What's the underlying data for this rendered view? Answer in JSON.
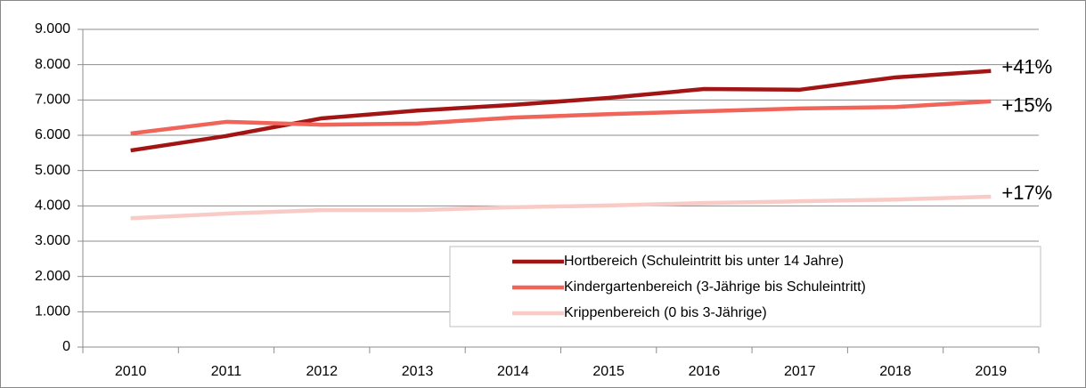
{
  "chart_data": {
    "type": "line",
    "categories": [
      "2010",
      "2011",
      "2012",
      "2013",
      "2014",
      "2015",
      "2016",
      "2017",
      "2018",
      "2019"
    ],
    "series": [
      {
        "name": "Hortbereich (Schuleintritt bis unter 14 Jahre)",
        "color": "#a31515",
        "values": [
          5570,
          5980,
          6480,
          6700,
          6860,
          7060,
          7310,
          7290,
          7640,
          7820
        ],
        "annotation": "+41%"
      },
      {
        "name": "Kindergartenbereich (3-Jährige bis Schuleintritt)",
        "color": "#f0645a",
        "values": [
          6050,
          6380,
          6300,
          6330,
          6500,
          6600,
          6680,
          6760,
          6800,
          6960
        ],
        "annotation": "+15%"
      },
      {
        "name": "Krippenbereich (0 bis 3-Jährige)",
        "color": "#f9cbc6",
        "values": [
          3650,
          3780,
          3880,
          3880,
          3960,
          4010,
          4080,
          4130,
          4180,
          4260
        ],
        "annotation": "+17%"
      }
    ],
    "ylim": [
      0,
      9000
    ],
    "yticks": [
      0,
      {
        "value": 1000,
        "label": "1.000"
      },
      {
        "value": 2000,
        "label": "2.000"
      },
      {
        "value": 3000,
        "label": "3.000"
      },
      {
        "value": 4000,
        "label": "4.000"
      },
      {
        "value": 5000,
        "label": "5.000"
      },
      {
        "value": 6000,
        "label": "6.000"
      },
      {
        "value": 7000,
        "label": "7.000"
      },
      {
        "value": 8000,
        "label": "8.000"
      },
      {
        "value": 9000,
        "label": "9.000"
      }
    ],
    "grid": true,
    "legend": "lower right"
  }
}
